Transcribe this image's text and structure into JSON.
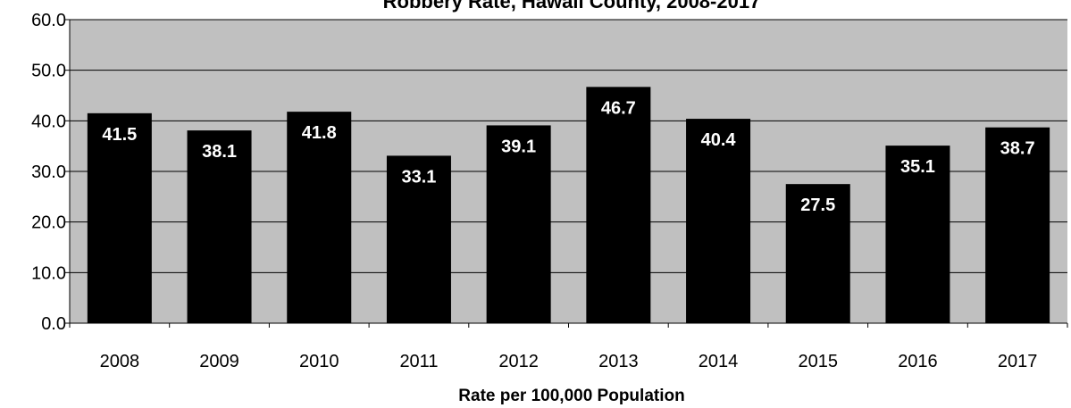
{
  "chart_data": {
    "type": "bar",
    "title": "Robbery Rate, Hawaii County, 2008-2017",
    "xlabel": "Rate per 100,000 Population",
    "ylabel": "",
    "categories": [
      "2008",
      "2009",
      "2010",
      "2011",
      "2012",
      "2013",
      "2014",
      "2015",
      "2016",
      "2017"
    ],
    "values": [
      41.5,
      38.1,
      41.8,
      33.1,
      39.1,
      46.7,
      40.4,
      27.5,
      35.1,
      38.7
    ],
    "data_labels": [
      "41.5",
      "38.1",
      "41.8",
      "33.1",
      "39.1",
      "46.7",
      "40.4",
      "27.5",
      "35.1",
      "38.7"
    ],
    "ylim": [
      0,
      60
    ],
    "yticks": [
      "0.0",
      "10.0",
      "20.0",
      "30.0",
      "40.0",
      "50.0",
      "60.0"
    ],
    "grid": true,
    "legend": "none",
    "colors": {
      "plot_background": "#c0c0c0",
      "bar": "#000000",
      "gridline": "#000000",
      "data_label": "#ffffff"
    }
  }
}
